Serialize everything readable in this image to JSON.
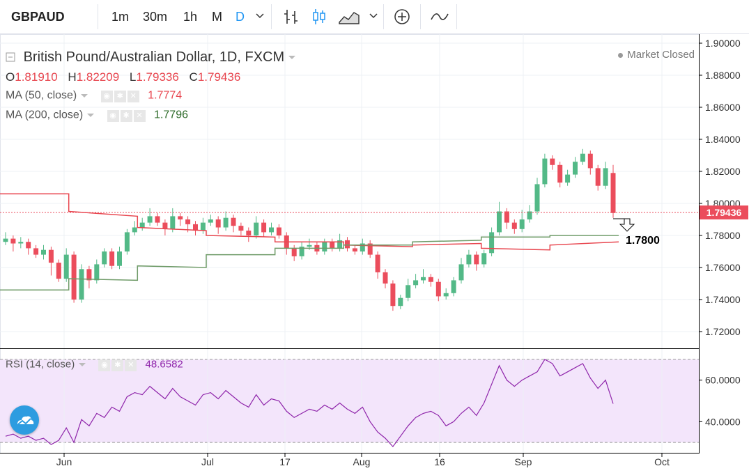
{
  "toolbar": {
    "symbol": "GBPAUD",
    "intervals": [
      "1m",
      "30m",
      "1h",
      "M",
      "D"
    ],
    "active_interval": "D"
  },
  "header": {
    "title": "British Pound/Australian Dollar, 1D, FXCM",
    "status": "Market Closed"
  },
  "ohlc": {
    "o_label": "O",
    "o": "1.81910",
    "h_label": "H",
    "h": "1.82209",
    "l_label": "L",
    "l": "1.79336",
    "c_label": "C",
    "c": "1.79436"
  },
  "indicators": {
    "ma50": {
      "label": "MA (50, close)",
      "value": "1.7774",
      "color": "#e8464f"
    },
    "ma200": {
      "label": "MA (200, close)",
      "value": "1.7796",
      "color": "#2e6b2a"
    },
    "rsi": {
      "label": "RSI (14, close)",
      "value": "48.6582",
      "color": "#8e24aa"
    }
  },
  "colors": {
    "up": "#53b987",
    "down": "#eb4d5c",
    "rsi_band": "#f3e5fb"
  },
  "chart_data": [
    {
      "type": "candlestick",
      "title": "British Pound/Australian Dollar, 1D, FXCM",
      "ylim": [
        1.71,
        1.9
      ],
      "y_ticks": [
        "1.90000",
        "1.88000",
        "1.86000",
        "1.84000",
        "1.82000",
        "1.80000",
        "1.78000",
        "1.76000",
        "1.74000",
        "1.72000"
      ],
      "x_ticks": [
        "Jun",
        "Jul",
        "17",
        "Aug",
        "16",
        "Sep",
        "Oct"
      ],
      "last_price": "1.79436",
      "annotation": {
        "text": "1.7800",
        "target": 1.78
      },
      "candles": [
        [
          1.776,
          1.778,
          1.78,
          1.777
        ],
        [
          1.778,
          1.775,
          1.774,
          1.772
        ],
        [
          1.775,
          1.776,
          1.777,
          1.774
        ],
        [
          1.776,
          1.772,
          1.768,
          1.77
        ],
        [
          1.772,
          1.768,
          1.769,
          1.768
        ],
        [
          1.768,
          1.771,
          1.772,
          1.767
        ],
        [
          1.771,
          1.763,
          1.763,
          1.757
        ],
        [
          1.763,
          1.753,
          1.755,
          1.755
        ],
        [
          1.753,
          1.768,
          1.77,
          1.762
        ],
        [
          1.768,
          1.74,
          1.741,
          1.743
        ],
        [
          1.74,
          1.759,
          1.76,
          1.748
        ],
        [
          1.759,
          1.752,
          1.751,
          1.749
        ],
        [
          1.752,
          1.762,
          1.763,
          1.758
        ],
        [
          1.762,
          1.77,
          1.769,
          1.77
        ],
        [
          1.77,
          1.761,
          1.763,
          1.762
        ],
        [
          1.761,
          1.77,
          1.771,
          1.769
        ],
        [
          1.77,
          1.782,
          1.781,
          1.778
        ],
        [
          1.782,
          1.785,
          1.787,
          1.787
        ],
        [
          1.785,
          1.788,
          1.789,
          1.788
        ],
        [
          1.788,
          1.792,
          1.795,
          1.795
        ],
        [
          1.792,
          1.788,
          1.79,
          1.788
        ],
        [
          1.788,
          1.784,
          1.784,
          1.782
        ],
        [
          1.784,
          1.792,
          1.795,
          1.793
        ],
        [
          1.792,
          1.79,
          1.789,
          1.788
        ],
        [
          1.79,
          1.787,
          1.786,
          1.784
        ],
        [
          1.787,
          1.783,
          1.783,
          1.782
        ],
        [
          1.783,
          1.788,
          1.789,
          1.787
        ],
        [
          1.788,
          1.79,
          1.791,
          1.789
        ],
        [
          1.79,
          1.785,
          1.785,
          1.783
        ],
        [
          1.785,
          1.791,
          1.793,
          1.79
        ],
        [
          1.791,
          1.786,
          1.785,
          1.784
        ],
        [
          1.786,
          1.783,
          1.784,
          1.782
        ],
        [
          1.783,
          1.78,
          1.779,
          1.778
        ],
        [
          1.78,
          1.788,
          1.79,
          1.789
        ],
        [
          1.788,
          1.782,
          1.784,
          1.781
        ],
        [
          1.782,
          1.785,
          1.786,
          1.785
        ],
        [
          1.785,
          1.78,
          1.781,
          1.78
        ],
        [
          1.78,
          1.772,
          1.772,
          1.77
        ],
        [
          1.772,
          1.767,
          1.768,
          1.766
        ],
        [
          1.767,
          1.773,
          1.774,
          1.771
        ],
        [
          1.773,
          1.774,
          1.776,
          1.773
        ],
        [
          1.774,
          1.77,
          1.772,
          1.77
        ],
        [
          1.77,
          1.776,
          1.776,
          1.775
        ],
        [
          1.776,
          1.772,
          1.773,
          1.773
        ],
        [
          1.772,
          1.777,
          1.779,
          1.776
        ],
        [
          1.777,
          1.772,
          1.773,
          1.772
        ],
        [
          1.772,
          1.77,
          1.772,
          1.77
        ],
        [
          1.77,
          1.775,
          1.776,
          1.773
        ],
        [
          1.775,
          1.768,
          1.769,
          1.768
        ],
        [
          1.768,
          1.757,
          1.757,
          1.755
        ],
        [
          1.757,
          1.75,
          1.752,
          1.749
        ],
        [
          1.75,
          1.736,
          1.737,
          1.735
        ],
        [
          1.736,
          1.741,
          1.74,
          1.741
        ],
        [
          1.741,
          1.749,
          1.751,
          1.746
        ],
        [
          1.749,
          1.752,
          1.754,
          1.752
        ],
        [
          1.752,
          1.754,
          1.757,
          1.755
        ],
        [
          1.754,
          1.751,
          1.752,
          1.75
        ],
        [
          1.751,
          1.742,
          1.743,
          1.741
        ],
        [
          1.742,
          1.744,
          1.745,
          1.744
        ],
        [
          1.744,
          1.752,
          1.752,
          1.751
        ],
        [
          1.752,
          1.762,
          1.764,
          1.762
        ],
        [
          1.762,
          1.768,
          1.769,
          1.767
        ],
        [
          1.768,
          1.762,
          1.761,
          1.76
        ],
        [
          1.762,
          1.769,
          1.768,
          1.767
        ],
        [
          1.769,
          1.782,
          1.783,
          1.782
        ],
        [
          1.782,
          1.795,
          1.799,
          1.797
        ],
        [
          1.795,
          1.788,
          1.787,
          1.786
        ],
        [
          1.788,
          1.784,
          1.784,
          1.783
        ],
        [
          1.784,
          1.79,
          1.794,
          1.793
        ],
        [
          1.79,
          1.795,
          1.797,
          1.795
        ],
        [
          1.795,
          1.812,
          1.814,
          1.813
        ],
        [
          1.812,
          1.828,
          1.829,
          1.828
        ],
        [
          1.828,
          1.824,
          1.825,
          1.823
        ],
        [
          1.824,
          1.813,
          1.814,
          1.812
        ],
        [
          1.813,
          1.818,
          1.819,
          1.818
        ],
        [
          1.818,
          1.826,
          1.827,
          1.826
        ],
        [
          1.826,
          1.831,
          1.832,
          1.831
        ],
        [
          1.831,
          1.822,
          1.821,
          1.82
        ],
        [
          1.822,
          1.811,
          1.81,
          1.81
        ],
        [
          1.811,
          1.822,
          1.824,
          1.823
        ],
        [
          1.819,
          1.794,
          1.822,
          1.793
        ]
      ],
      "ma50": [
        [
          1.806,
          1.806
        ],
        [
          1.795,
          1.792
        ],
        [
          1.785,
          1.783
        ],
        [
          1.78,
          1.779
        ],
        [
          1.776,
          1.776
        ],
        [
          1.774,
          1.773
        ],
        [
          1.774,
          1.775
        ],
        [
          1.772,
          1.771
        ],
        [
          1.774,
          1.776
        ]
      ],
      "ma200": [
        [
          1.746,
          1.746
        ],
        [
          1.753,
          1.752
        ],
        [
          1.761,
          1.76
        ],
        [
          1.768,
          1.768
        ],
        [
          1.772,
          1.772
        ],
        [
          1.774,
          1.774
        ],
        [
          1.776,
          1.777
        ],
        [
          1.779,
          1.779
        ],
        [
          1.78,
          1.78
        ]
      ]
    },
    {
      "type": "line",
      "title": "RSI (14, close)",
      "ylim": [
        25,
        75
      ],
      "y_ticks": [
        "60.0000",
        "40.0000"
      ],
      "bands": [
        70,
        30
      ],
      "values": [
        33,
        34,
        32,
        33,
        31,
        32,
        29,
        31,
        37,
        30,
        41,
        38,
        44,
        42,
        47,
        45,
        52,
        54,
        53,
        57,
        54,
        51,
        56,
        52,
        50,
        48,
        53,
        54,
        51,
        55,
        52,
        49,
        47,
        53,
        48,
        51,
        50,
        45,
        42,
        44,
        46,
        45,
        48,
        46,
        49,
        46,
        44,
        47,
        40,
        35,
        32,
        28,
        33,
        38,
        42,
        44,
        45,
        43,
        38,
        40,
        44,
        47,
        43,
        49,
        58,
        67,
        60,
        57,
        60,
        62,
        64,
        70,
        68,
        62,
        64,
        66,
        68,
        61,
        56,
        60,
        48.66
      ]
    }
  ]
}
